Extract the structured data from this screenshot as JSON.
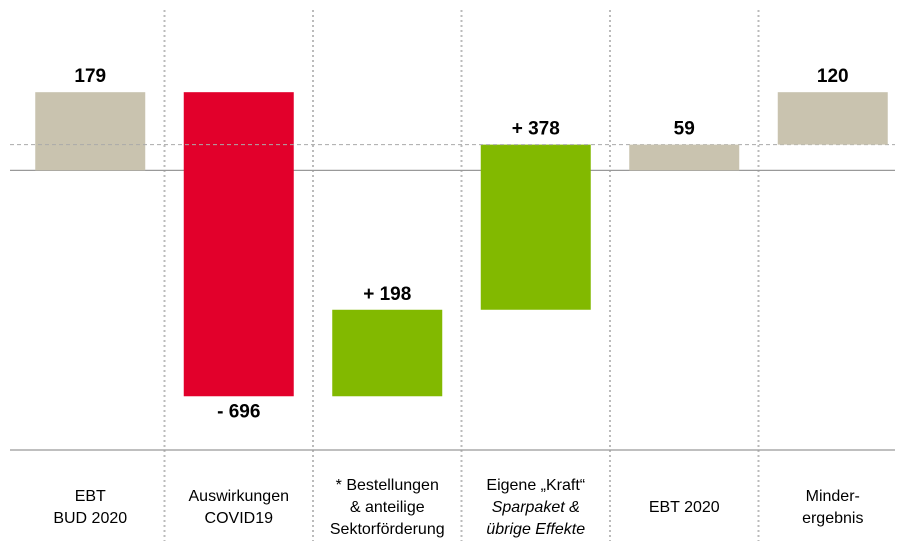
{
  "chart_data": {
    "type": "waterfall",
    "categories": [
      [
        "EBT",
        "BUD 2020"
      ],
      [
        "Auswirkungen",
        "COVID19"
      ],
      [
        "* Bestellungen",
        "& anteilige",
        "Sektorförderung"
      ],
      [
        "Eigene „Kraft“",
        {
          "text": "Sparpaket &",
          "italic": true
        },
        {
          "text": "übrige Effekte",
          "italic": true
        }
      ],
      [
        "EBT 2020"
      ],
      [
        "Minder-",
        "ergebnis"
      ]
    ],
    "values": [
      179,
      -696,
      198,
      378,
      59,
      120
    ],
    "value_labels": [
      "179",
      "- 696",
      "+ 198",
      "+ 378",
      "59",
      "120"
    ],
    "measure": [
      "absolute",
      "relative",
      "relative",
      "relative",
      "absolute",
      "relative"
    ],
    "colors": [
      "#c9c3af",
      "#e2002b",
      "#82b900",
      "#82b900",
      "#c9c3af",
      "#c9c3af"
    ],
    "ylim": [
      -640,
      390
    ]
  }
}
